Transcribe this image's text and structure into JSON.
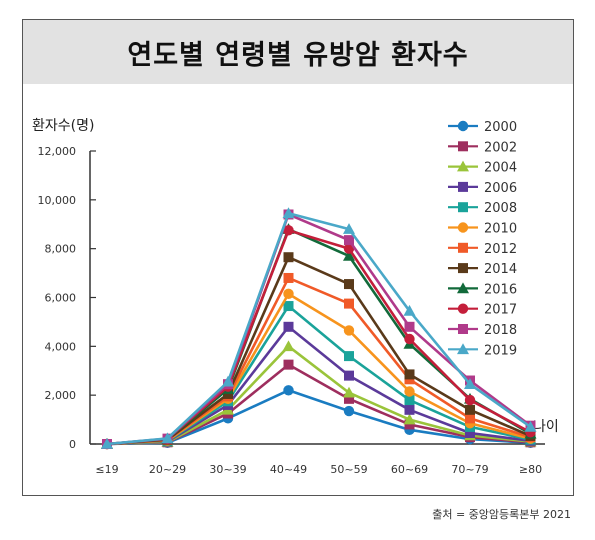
{
  "title": "연도별 연령별 유방암 환자수",
  "source": "출처 = 중앙암등록본부 2021",
  "chart_data": {
    "type": "line",
    "ylabel": "환자수(명)",
    "xlabel": "나이",
    "ylim": [
      0,
      12000
    ],
    "yticks": [
      0,
      2000,
      4000,
      6000,
      8000,
      10000,
      12000
    ],
    "ytick_labels": [
      "0",
      "2,000",
      "4,000",
      "6,000",
      "8,000",
      "10,000",
      "12,000"
    ],
    "categories": [
      "≤19",
      "20~29",
      "30~39",
      "40~49",
      "50~59",
      "60~69",
      "70~79",
      "≥80"
    ],
    "legend_position": "right",
    "series": [
      {
        "name": "2000",
        "color": "#1a7cc1",
        "marker": "circle",
        "values": [
          0,
          50,
          1050,
          2200,
          1350,
          580,
          200,
          50
        ]
      },
      {
        "name": "2002",
        "color": "#9e2e5e",
        "marker": "square",
        "values": [
          0,
          70,
          1250,
          3250,
          1850,
          800,
          280,
          70
        ]
      },
      {
        "name": "2004",
        "color": "#9ac43a",
        "marker": "triangle",
        "values": [
          0,
          80,
          1400,
          4000,
          2100,
          1000,
          350,
          100
        ]
      },
      {
        "name": "2006",
        "color": "#5b3a9a",
        "marker": "square",
        "values": [
          0,
          100,
          1600,
          4800,
          2800,
          1400,
          450,
          130
        ]
      },
      {
        "name": "2008",
        "color": "#1aa39a",
        "marker": "square",
        "values": [
          0,
          120,
          1750,
          5650,
          3600,
          1800,
          700,
          180
        ]
      },
      {
        "name": "2010",
        "color": "#f7941d",
        "marker": "circle",
        "values": [
          0,
          140,
          1850,
          6150,
          4650,
          2150,
          850,
          220
        ]
      },
      {
        "name": "2012",
        "color": "#f05a28",
        "marker": "square",
        "values": [
          0,
          160,
          1950,
          6800,
          5750,
          2650,
          1050,
          280
        ]
      },
      {
        "name": "2014",
        "color": "#5a3a1a",
        "marker": "square",
        "values": [
          0,
          180,
          2050,
          7650,
          6550,
          2850,
          1400,
          330
        ]
      },
      {
        "name": "2016",
        "color": "#126a3a",
        "marker": "triangle",
        "values": [
          0,
          200,
          2250,
          8800,
          7700,
          4100,
          1850,
          420
        ]
      },
      {
        "name": "2017",
        "color": "#c41e3a",
        "marker": "circle",
        "values": [
          0,
          210,
          2350,
          8750,
          8000,
          4300,
          1800,
          480
        ]
      },
      {
        "name": "2018",
        "color": "#b03a8a",
        "marker": "square",
        "values": [
          0,
          220,
          2450,
          9400,
          8350,
          4800,
          2600,
          750
        ]
      },
      {
        "name": "2019",
        "color": "#4aa8c8",
        "marker": "triangle",
        "values": [
          0,
          230,
          2550,
          9450,
          8800,
          5450,
          2450,
          700
        ]
      }
    ]
  }
}
